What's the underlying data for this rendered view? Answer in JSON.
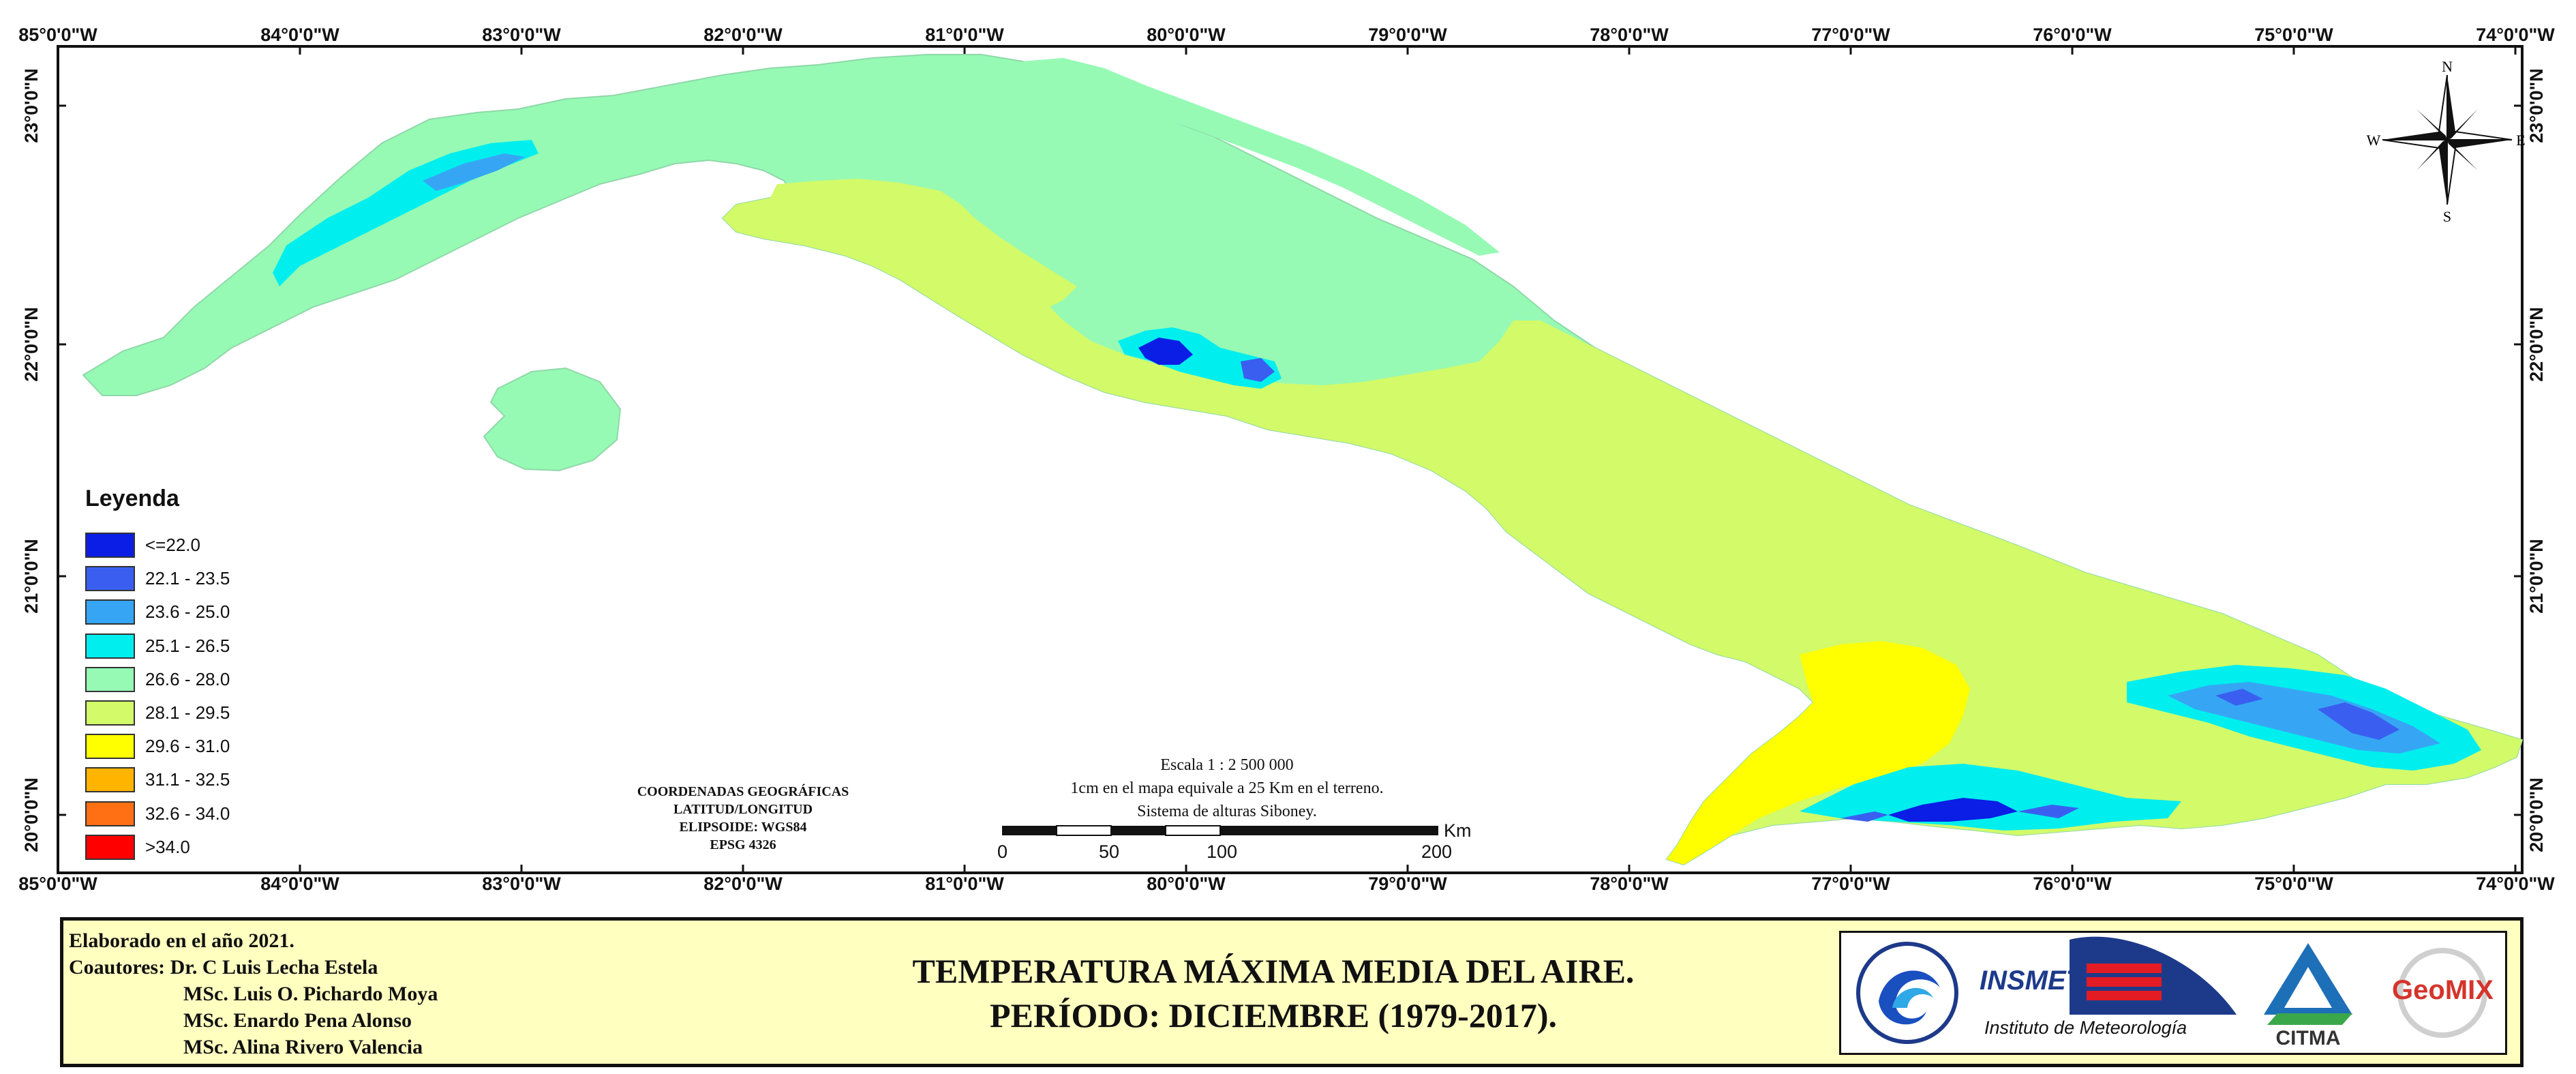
{
  "map": {
    "lon_ticks": [
      "85°0'0\"W",
      "84°0'0\"W",
      "83°0'0\"W",
      "82°0'0\"W",
      "81°0'0\"W",
      "80°0'0\"W",
      "79°0'0\"W",
      "78°0'0\"W",
      "77°0'0\"W",
      "76°0'0\"W",
      "75°0'0\"W",
      "74°0'0\"W"
    ],
    "lat_ticks": [
      "23°0'0\"N",
      "22°0'0\"N",
      "21°0'0\"N",
      "20°0'0\"N"
    ],
    "compass": {
      "n": "N",
      "s": "S",
      "e": "E",
      "w": "W"
    }
  },
  "legend": {
    "title": "Leyenda",
    "items": [
      {
        "label": "<=22.0",
        "color": "#0a1ee6"
      },
      {
        "label": "22.1 - 23.5",
        "color": "#3a5ff0"
      },
      {
        "label": "23.6 - 25.0",
        "color": "#36a6f4"
      },
      {
        "label": "25.1 - 26.5",
        "color": "#00eeee"
      },
      {
        "label": "26.6 - 28.0",
        "color": "#96fab4"
      },
      {
        "label": "28.1 - 29.5",
        "color": "#d2fa69"
      },
      {
        "label": "29.6 - 31.0",
        "color": "#ffff00"
      },
      {
        "label": "31.1 - 32.5",
        "color": "#ffb400"
      },
      {
        "label": "32.6 - 34.0",
        "color": "#ff7014"
      },
      {
        "label": ">34.0",
        "color": "#ff0000"
      }
    ]
  },
  "coords_note": {
    "line1": "COORDENADAS GEOGRÁFICAS",
    "line2": "LATITUD/LONGITUD",
    "line3": "ELIPSOIDE: WGS84",
    "line4": "EPSG 4326"
  },
  "scale": {
    "line1": "Escala 1 : 2 500 000",
    "line2": "1cm en el mapa equivale a 25 Km en el terreno.",
    "line3": "Sistema de alturas Siboney.",
    "unit": "Km",
    "n0": "0",
    "n50": "50",
    "n100": "100",
    "n200": "200"
  },
  "footer": {
    "elaborated": "Elaborado en el año 2021.",
    "coauthors_label": "Coautores:",
    "author1": "Dr. C Luis Lecha Estela",
    "author2": "MSc. Luis O. Pichardo Moya",
    "author3": "MSc. Enardo Pena Alonso",
    "author4": "MSc. Alina Rivero Valencia",
    "title1": "TEMPERATURA MÁXIMA MEDIA DEL AIRE.",
    "title2": "PERÍODO: DICIEMBRE (1979-2017).",
    "logo_insmet_name": "INSMET",
    "logo_insmet_sub": "Instituto de Meteorología",
    "logo_citma": "CITMA",
    "logo_geomix": "GeoMIX"
  }
}
